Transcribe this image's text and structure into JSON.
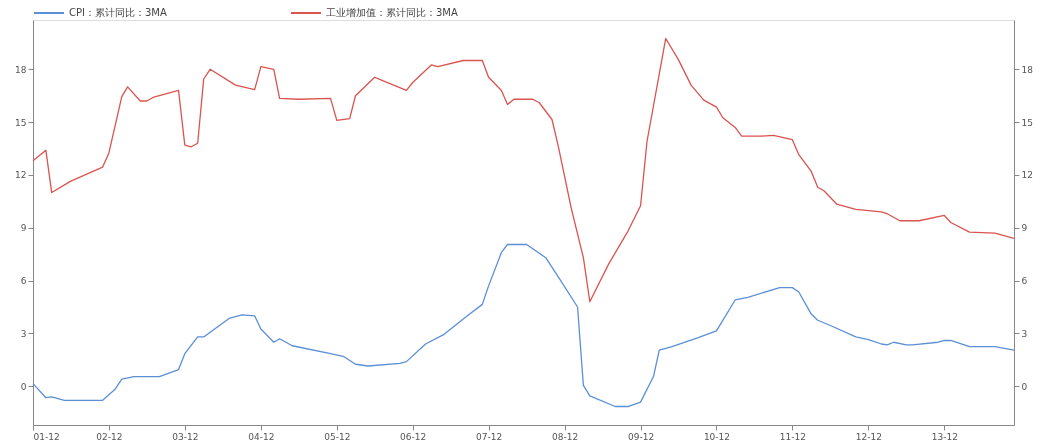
{
  "chart_data": {
    "type": "line",
    "legend": "top",
    "grid": false,
    "line_style": "solid",
    "xlim": [
      "2001-12",
      "2014-11"
    ],
    "xticks": [
      {
        "value": "2001-12",
        "label": "01-12"
      },
      {
        "value": "2002-12",
        "label": "02-12"
      },
      {
        "value": "2003-12",
        "label": "03-12"
      },
      {
        "value": "2004-12",
        "label": "04-12"
      },
      {
        "value": "2005-12",
        "label": "05-12"
      },
      {
        "value": "2006-12",
        "label": "06-12"
      },
      {
        "value": "2007-12",
        "label": "07-12"
      },
      {
        "value": "2008-12",
        "label": "08-12"
      },
      {
        "value": "2009-12",
        "label": "09-12"
      },
      {
        "value": "2010-12",
        "label": "10-12"
      },
      {
        "value": "2011-12",
        "label": "11-12"
      },
      {
        "value": "2012-12",
        "label": "12-12"
      },
      {
        "value": "2013-12",
        "label": "13-12"
      }
    ],
    "ylim": [
      -2.2,
      20.8
    ],
    "yticks": [
      0,
      3,
      6,
      9,
      12,
      15,
      18
    ],
    "y2lim": [
      -2.2,
      20.8
    ],
    "y2ticks": [
      0,
      3,
      6,
      9,
      12,
      15,
      18
    ],
    "series": [
      {
        "name": "CPI：累计同比：3MA",
        "color": "#5b8fd6",
        "x": [
          "2001-12",
          "2002-02",
          "2002-03",
          "2002-05",
          "2002-11",
          "2003-01",
          "2003-02",
          "2003-04",
          "2003-08",
          "2003-11",
          "2003-12",
          "2004-02",
          "2004-03",
          "2004-07",
          "2004-09",
          "2004-11",
          "2004-12",
          "2005-02",
          "2005-03",
          "2005-05",
          "2005-11",
          "2006-01",
          "2006-03",
          "2006-05",
          "2006-10",
          "2006-11",
          "2007-02",
          "2007-05",
          "2007-09",
          "2007-11",
          "2007-12",
          "2008-02",
          "2008-03",
          "2008-06",
          "2008-09",
          "2008-11",
          "2009-02",
          "2009-03",
          "2009-04",
          "2009-08",
          "2009-10",
          "2009-12",
          "2010-02",
          "2010-03",
          "2010-05",
          "2010-09",
          "2010-12",
          "2011-03",
          "2011-05",
          "2011-10",
          "2011-12",
          "2012-01",
          "2012-03",
          "2012-04",
          "2012-06",
          "2012-10",
          "2012-12",
          "2013-02",
          "2013-03",
          "2013-04",
          "2013-06",
          "2013-07",
          "2013-11",
          "2013-12",
          "2014-01",
          "2014-04",
          "2014-08",
          "2014-11"
        ],
        "values": [
          0.15,
          -0.65,
          -0.6,
          -0.8,
          -0.8,
          -0.15,
          0.4,
          0.55,
          0.55,
          0.95,
          1.85,
          2.8,
          2.8,
          3.85,
          4.05,
          4.0,
          3.25,
          2.5,
          2.7,
          2.3,
          1.85,
          1.7,
          1.25,
          1.15,
          1.3,
          1.4,
          2.4,
          2.95,
          4.1,
          4.65,
          5.7,
          7.6,
          8.05,
          8.05,
          7.3,
          6.2,
          4.5,
          0.05,
          -0.55,
          -1.15,
          -1.15,
          -0.9,
          0.55,
          2.05,
          2.25,
          2.75,
          3.15,
          4.9,
          5.05,
          5.6,
          5.6,
          5.35,
          4.1,
          3.75,
          3.45,
          2.8,
          2.65,
          2.4,
          2.35,
          2.5,
          2.35,
          2.35,
          2.5,
          2.6,
          2.6,
          2.25,
          2.25,
          2.05
        ]
      },
      {
        "name": "工业增加值：累计同比：3MA",
        "color": "#d9534f",
        "axis": "y2",
        "x": [
          "2001-12",
          "2002-02",
          "2002-03",
          "2002-06",
          "2002-11",
          "2002-12",
          "2003-02",
          "2003-03",
          "2003-05",
          "2003-06",
          "2003-07",
          "2003-11",
          "2003-12",
          "2004-01",
          "2004-02",
          "2004-03",
          "2004-04",
          "2004-08",
          "2004-11",
          "2004-12",
          "2005-02",
          "2005-03",
          "2005-06",
          "2005-11",
          "2005-12",
          "2006-02",
          "2006-03",
          "2006-06",
          "2006-07",
          "2006-11",
          "2006-12",
          "2007-03",
          "2007-04",
          "2007-08",
          "2007-11",
          "2007-12",
          "2008-02",
          "2008-03",
          "2008-04",
          "2008-07",
          "2008-08",
          "2008-10",
          "2008-11",
          "2009-01",
          "2009-03",
          "2009-04",
          "2009-07",
          "2009-10",
          "2009-12",
          "2010-01",
          "2010-04",
          "2010-06",
          "2010-08",
          "2010-10",
          "2010-12",
          "2011-01",
          "2011-03",
          "2011-04",
          "2011-07",
          "2011-09",
          "2011-12",
          "2012-01",
          "2012-03",
          "2012-04",
          "2012-05",
          "2012-07",
          "2012-10",
          "2013-02",
          "2013-03",
          "2013-05",
          "2013-08",
          "2013-12",
          "2014-01",
          "2014-04",
          "2014-08",
          "2014-11"
        ],
        "values": [
          12.8,
          13.4,
          11.0,
          11.65,
          12.45,
          13.25,
          16.45,
          17.0,
          16.2,
          16.2,
          16.4,
          16.8,
          13.7,
          13.6,
          13.8,
          17.45,
          18.0,
          17.1,
          16.85,
          18.15,
          18.0,
          16.35,
          16.3,
          16.35,
          15.1,
          15.2,
          16.5,
          17.55,
          17.4,
          16.8,
          17.25,
          18.25,
          18.15,
          18.5,
          18.5,
          17.55,
          16.8,
          16.0,
          16.3,
          16.3,
          16.1,
          15.15,
          13.6,
          10.15,
          7.3,
          4.8,
          6.95,
          8.8,
          10.25,
          13.9,
          19.75,
          18.55,
          17.1,
          16.25,
          15.85,
          15.25,
          14.7,
          14.2,
          14.2,
          14.25,
          14.0,
          13.15,
          12.2,
          11.3,
          11.1,
          10.35,
          10.05,
          9.9,
          9.8,
          9.4,
          9.4,
          9.7,
          9.3,
          8.75,
          8.7,
          8.4
        ]
      }
    ]
  }
}
